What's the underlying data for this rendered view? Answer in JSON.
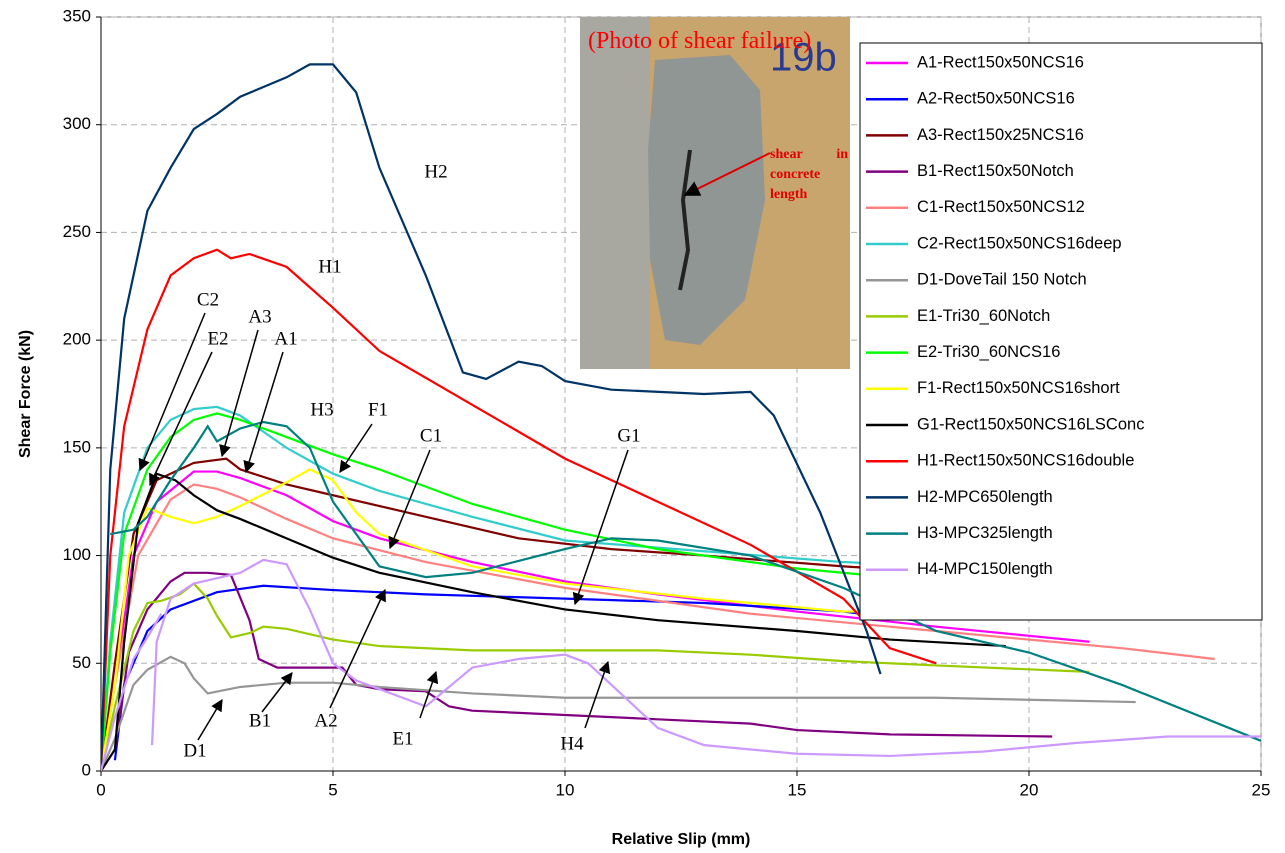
{
  "chart_data": {
    "type": "line",
    "xlabel": "Relative Slip (mm)",
    "ylabel": "Shear Force (kN)",
    "xlim": [
      0,
      25
    ],
    "xticks": [
      0,
      5,
      10,
      15,
      20,
      25
    ],
    "ylim": [
      0,
      350
    ],
    "yticks": [
      0,
      50,
      100,
      150,
      200,
      250,
      300,
      350
    ],
    "grid": true,
    "legend": "right",
    "series": [
      {
        "name": "A1-Rect150x50NCS16",
        "color": "#ff00ff",
        "x": [
          0,
          0.3,
          0.7,
          1.2,
          2,
          2.5,
          3,
          4,
          5,
          6,
          8,
          10,
          12,
          15,
          18,
          21.3
        ],
        "values": [
          0,
          40,
          100,
          125,
          139,
          139,
          136,
          128,
          116,
          108,
          97,
          88,
          82,
          74,
          67,
          60
        ]
      },
      {
        "name": "A2-Rect50x50NCS16",
        "color": "#0000ff",
        "x": [
          0.3,
          0.5,
          1,
          1.5,
          2.5,
          3.5,
          5,
          7,
          10,
          13,
          16,
          17.5
        ],
        "values": [
          5,
          40,
          65,
          75,
          83,
          86,
          84,
          82,
          80,
          78,
          74,
          70
        ]
      },
      {
        "name": "A3-Rect150x25NCS16",
        "color": "#800000",
        "x": [
          0,
          0.3,
          0.7,
          1.2,
          2,
          2.7,
          3,
          4,
          5,
          7,
          9,
          11,
          13,
          16,
          17.5
        ],
        "values": [
          0,
          50,
          110,
          135,
          143,
          145,
          140,
          133,
          128,
          118,
          108,
          103,
          100,
          95,
          93
        ]
      },
      {
        "name": "B1-Rect150x50Notch",
        "color": "#800080",
        "x": [
          0.3,
          0.6,
          1,
          1.5,
          1.8,
          2.3,
          2.8,
          3.2,
          3.4,
          3.8,
          4.5,
          5.2,
          5.5,
          6,
          7,
          7.5,
          8,
          10,
          12,
          14,
          15,
          17,
          20.5
        ],
        "values": [
          10,
          55,
          75,
          88,
          92,
          92,
          91,
          70,
          52,
          48,
          48,
          48,
          40,
          38,
          37,
          30,
          28,
          26,
          24,
          22,
          19,
          17,
          16
        ]
      },
      {
        "name": "C1-Rect150x50NCS12",
        "color": "#ff8080",
        "x": [
          0,
          0.3,
          0.8,
          1.5,
          2,
          2.5,
          3,
          4,
          5,
          7,
          10,
          14,
          18,
          22,
          24
        ],
        "values": [
          0,
          40,
          100,
          126,
          133,
          131,
          127,
          117,
          108,
          97,
          85,
          73,
          65,
          57,
          52
        ]
      },
      {
        "name": "C2-Rect150x50NCS16deep",
        "color": "#33cccc",
        "x": [
          0,
          0.2,
          0.5,
          1,
          1.5,
          2,
          2.5,
          3,
          4,
          5,
          6,
          8,
          10,
          13,
          16,
          17
        ],
        "values": [
          0,
          60,
          120,
          150,
          163,
          168,
          169,
          165,
          150,
          138,
          130,
          118,
          107,
          102,
          97,
          96
        ]
      },
      {
        "name": "D1-DoveTail 150 Notch",
        "color": "#969696",
        "x": [
          0,
          0.3,
          0.7,
          1,
          1.5,
          1.8,
          2,
          2.3,
          3,
          4,
          5,
          6,
          8,
          10,
          14,
          18,
          22.3
        ],
        "values": [
          0,
          15,
          40,
          47,
          53,
          50,
          43,
          36,
          39,
          41,
          41,
          39,
          36,
          34,
          34,
          34,
          32
        ]
      },
      {
        "name": "E1-Tri30_60Notch",
        "color": "#99cc00",
        "x": [
          0,
          0.3,
          0.7,
          1,
          1.3,
          1.7,
          2,
          2.3,
          2.5,
          2.8,
          3.2,
          3.5,
          4,
          5,
          6,
          8,
          10,
          12,
          14,
          16,
          18,
          21.3
        ],
        "values": [
          0,
          30,
          65,
          78,
          79,
          82,
          87,
          80,
          72,
          62,
          64,
          67,
          66,
          61,
          58,
          56,
          56,
          56,
          54,
          51,
          49,
          46
        ]
      },
      {
        "name": "E2-Tri30_60NCS16",
        "color": "#00ff00",
        "x": [
          0,
          0.2,
          0.5,
          1,
          1.5,
          2,
          2.5,
          3,
          4,
          5,
          6,
          8,
          10,
          12,
          15,
          17
        ],
        "values": [
          0,
          55,
          110,
          140,
          155,
          163,
          166,
          163,
          155,
          147,
          140,
          124,
          112,
          103,
          94,
          90
        ]
      },
      {
        "name": "F1-Rect150x50NCS16short",
        "color": "#ffff00",
        "x": [
          0,
          0.3,
          0.6,
          1,
          1.5,
          2,
          2.5,
          3,
          4,
          4.5,
          5,
          5.5,
          6,
          8,
          10,
          13,
          16,
          17
        ],
        "values": [
          0,
          40,
          100,
          122,
          118,
          115,
          118,
          123,
          134,
          140,
          135,
          120,
          110,
          95,
          87,
          80,
          74,
          74
        ]
      },
      {
        "name": "G1-Rect150x50NCS16LSConc",
        "color": "#000000",
        "x": [
          0,
          0.3,
          0.5,
          0.8,
          1.2,
          1.6,
          2,
          2.5,
          3,
          4,
          5,
          6,
          8,
          10,
          12,
          15,
          17,
          19.5
        ],
        "values": [
          0,
          10,
          60,
          115,
          138,
          135,
          128,
          121,
          117,
          108,
          99,
          92,
          83,
          75,
          70,
          65,
          61,
          58
        ]
      },
      {
        "name": "H1-Rect150x50NCS16double",
        "color": "#ff0000",
        "x": [
          0,
          0.2,
          0.5,
          1,
          1.5,
          2,
          2.5,
          2.8,
          3.2,
          4,
          5,
          6,
          8,
          10,
          12,
          14,
          16,
          17,
          18
        ],
        "values": [
          0,
          100,
          160,
          205,
          230,
          238,
          242,
          238,
          240,
          234,
          215,
          195,
          170,
          145,
          125,
          105,
          80,
          57,
          50
        ]
      },
      {
        "name": "H2-MPC650length",
        "color": "#003366",
        "x": [
          0,
          0.2,
          0.5,
          1,
          1.5,
          2,
          2.5,
          3,
          4,
          4.5,
          5,
          5.5,
          6,
          7,
          7.8,
          8.3,
          9,
          9.5,
          10,
          11,
          13,
          14,
          14.5,
          15.5,
          16.5,
          16.8
        ],
        "values": [
          0,
          140,
          210,
          260,
          280,
          298,
          305,
          313,
          322,
          328,
          328,
          315,
          280,
          230,
          185,
          182,
          190,
          188,
          181,
          177,
          175,
          176,
          165,
          120,
          65,
          45
        ]
      },
      {
        "name": "H3-MPC325length",
        "color": "#008080",
        "x": [
          0.2,
          0.7,
          1,
          1.5,
          2,
          2.3,
          2.5,
          3,
          3.5,
          4,
          4.5,
          5,
          6,
          7,
          8,
          10,
          11,
          12,
          14,
          16,
          18,
          20,
          22,
          25
        ],
        "values": [
          110,
          112,
          118,
          135,
          150,
          160,
          153,
          159,
          162,
          160,
          150,
          125,
          95,
          90,
          92,
          103,
          108,
          107,
          100,
          85,
          65,
          55,
          40,
          14
        ]
      },
      {
        "name": "H4-MPC150length",
        "color": "#cc99ff",
        "x": [
          0,
          0.3,
          0.7,
          1,
          1.3,
          null,
          1.1,
          1.2,
          1.5,
          2,
          3,
          3.5,
          4,
          4.5,
          5,
          5.5,
          6,
          7,
          8,
          9,
          10,
          10.5,
          11,
          12,
          13,
          15,
          17,
          19,
          21,
          23,
          25
        ],
        "values": [
          0,
          25,
          52,
          62,
          73,
          null,
          12,
          60,
          80,
          87,
          92,
          98,
          96,
          75,
          50,
          42,
          38,
          30,
          48,
          52,
          54,
          50,
          40,
          20,
          12,
          8,
          7,
          9,
          13,
          16,
          16
        ]
      }
    ],
    "annotations": [
      "H2",
      "H1",
      "C2",
      "E2",
      "A3",
      "A1",
      "H3",
      "F1",
      "C1",
      "G1",
      "D1",
      "B1",
      "A2",
      "E1",
      "H4"
    ]
  },
  "photo": {
    "caption": "(Photo of shear failure)",
    "label": "shear in concrete length",
    "marker": "19b"
  }
}
